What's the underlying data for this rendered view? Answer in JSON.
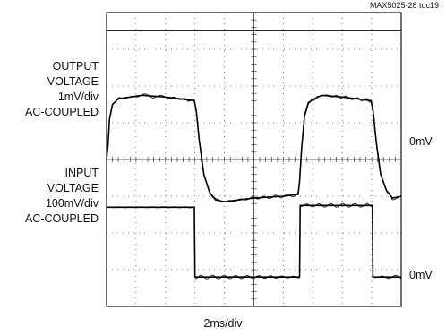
{
  "figure_id": "MAX5025-28 toc19",
  "chart_data": {
    "type": "line",
    "title": "",
    "xlabel": "2ms/div",
    "x_divisions": 10,
    "y_divisions": 8,
    "grid": true,
    "series": [
      {
        "label_lines": [
          "OUTPUT",
          "VOLTAGE",
          "1mV/div",
          "AC-COUPLED"
        ],
        "ref_label": "0mV",
        "ref_div": 5.65,
        "x": [
          0,
          0.05,
          0.1,
          0.2,
          0.4,
          0.8,
          1.2,
          2.0,
          2.5,
          2.98,
          3.05,
          3.15,
          3.3,
          3.5,
          3.7,
          4.0,
          5.0,
          6.0,
          6.5,
          6.55,
          6.62,
          6.72,
          6.85,
          7.05,
          7.3,
          8.0,
          8.5,
          8.98,
          9.05,
          9.15,
          9.3,
          9.5,
          9.7,
          10.0
        ],
        "y": [
          4.0,
          4.4,
          5.1,
          5.5,
          5.65,
          5.7,
          5.75,
          5.7,
          5.65,
          5.6,
          5.3,
          4.5,
          3.6,
          3.1,
          2.9,
          2.85,
          2.95,
          3.0,
          3.05,
          3.4,
          4.3,
          5.2,
          5.55,
          5.65,
          5.75,
          5.7,
          5.65,
          5.6,
          5.3,
          4.5,
          3.6,
          3.15,
          2.95,
          3.0
        ]
      },
      {
        "label_lines": [
          "INPUT",
          "VOLTAGE",
          "100mV/div",
          "AC-COUPLED"
        ],
        "ref_label": "0mV",
        "ref_div": 1.35,
        "x": [
          0,
          2.98,
          3.0,
          6.55,
          6.57,
          9.02,
          9.04,
          10.0
        ],
        "y": [
          2.7,
          2.7,
          0.8,
          0.8,
          2.75,
          2.75,
          0.8,
          0.8
        ]
      }
    ]
  }
}
